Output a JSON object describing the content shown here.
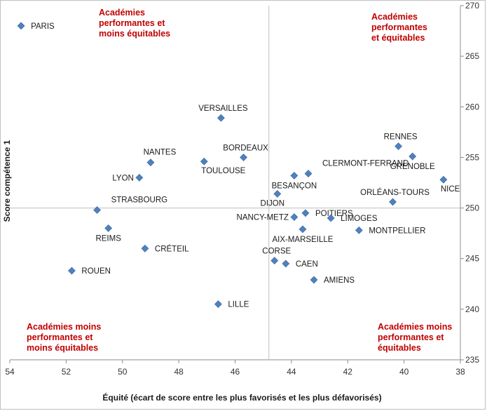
{
  "chart_data": {
    "type": "scatter",
    "xlabel": "Équité (écart de score entre les plus favorisés et les plus défavorisés)",
    "ylabel": "Score compétence 1",
    "xlim": [
      54,
      38
    ],
    "x_reversed": true,
    "ylim": [
      235,
      270
    ],
    "x_ticks": [
      54,
      52,
      50,
      48,
      46,
      44,
      42,
      40,
      38
    ],
    "y_ticks": [
      235,
      240,
      245,
      250,
      255,
      260,
      265,
      270
    ],
    "y_axis_position": "right",
    "reference_lines": {
      "x": 44.8,
      "y": 250
    },
    "marker_color": "#4f81bd",
    "quadrant_color": "#c00000",
    "quadrant_labels": [
      {
        "position": "top-left",
        "lines": [
          "Académies",
          "performantes et",
          "moins équitables"
        ]
      },
      {
        "position": "top-right",
        "lines": [
          "Académies",
          "performantes",
          "et équitables"
        ]
      },
      {
        "position": "bottom-left",
        "lines": [
          "Académies moins",
          "performantes et",
          "moins équitables"
        ]
      },
      {
        "position": "bottom-right",
        "lines": [
          "Académies moins",
          "performantes et",
          "équitables"
        ]
      }
    ],
    "points": [
      {
        "name": "PARIS",
        "x": 53.6,
        "y": 268.0,
        "label_side": "right"
      },
      {
        "name": "VERSAILLES",
        "x": 46.5,
        "y": 258.9,
        "label_side": "above"
      },
      {
        "name": "NANTES",
        "x": 49.0,
        "y": 254.5,
        "label_side": "above-left"
      },
      {
        "name": "LYON",
        "x": 49.4,
        "y": 253.0,
        "label_side": "left"
      },
      {
        "name": "TOULOUSE",
        "x": 47.1,
        "y": 254.6,
        "label_side": "below-right"
      },
      {
        "name": "BORDEAUX",
        "x": 45.7,
        "y": 255.0,
        "label_side": "above"
      },
      {
        "name": "CLERMONT-FERRAND",
        "x": 43.4,
        "y": 253.4,
        "label_side": "above-right"
      },
      {
        "name": "BESANÇON",
        "x": 43.9,
        "y": 253.2,
        "label_side": "below"
      },
      {
        "name": "DIJON",
        "x": 44.5,
        "y": 251.4,
        "label_side": "below-left"
      },
      {
        "name": "RENNES",
        "x": 40.2,
        "y": 256.1,
        "label_side": "above"
      },
      {
        "name": "GRENOBLE",
        "x": 39.7,
        "y": 255.1,
        "label_side": "below"
      },
      {
        "name": "NICE",
        "x": 38.6,
        "y": 252.8,
        "label_side": "below-right"
      },
      {
        "name": "ORLÉANS-TOURS",
        "x": 40.4,
        "y": 250.6,
        "label_side": "above"
      },
      {
        "name": "STRASBOURG",
        "x": 50.9,
        "y": 249.8,
        "label_side": "above-right"
      },
      {
        "name": "REIMS",
        "x": 50.5,
        "y": 248.0,
        "label_side": "below"
      },
      {
        "name": "POITIERS",
        "x": 43.5,
        "y": 249.5,
        "label_side": "right"
      },
      {
        "name": "NANCY-METZ",
        "x": 43.9,
        "y": 249.1,
        "label_side": "left"
      },
      {
        "name": "LIMOGES",
        "x": 42.6,
        "y": 249.0,
        "label_side": "right"
      },
      {
        "name": "AIX-MARSEILLE",
        "x": 43.6,
        "y": 247.9,
        "label_side": "below"
      },
      {
        "name": "MONTPELLIER",
        "x": 41.6,
        "y": 247.8,
        "label_side": "right"
      },
      {
        "name": "CRÉTEIL",
        "x": 49.2,
        "y": 246.0,
        "label_side": "right"
      },
      {
        "name": "CORSE",
        "x": 44.6,
        "y": 244.8,
        "label_side": "above"
      },
      {
        "name": "CAEN",
        "x": 44.2,
        "y": 244.5,
        "label_side": "right"
      },
      {
        "name": "ROUEN",
        "x": 51.8,
        "y": 243.8,
        "label_side": "right"
      },
      {
        "name": "AMIENS",
        "x": 43.2,
        "y": 242.9,
        "label_side": "right"
      },
      {
        "name": "LILLE",
        "x": 46.6,
        "y": 240.5,
        "label_side": "right"
      }
    ]
  }
}
